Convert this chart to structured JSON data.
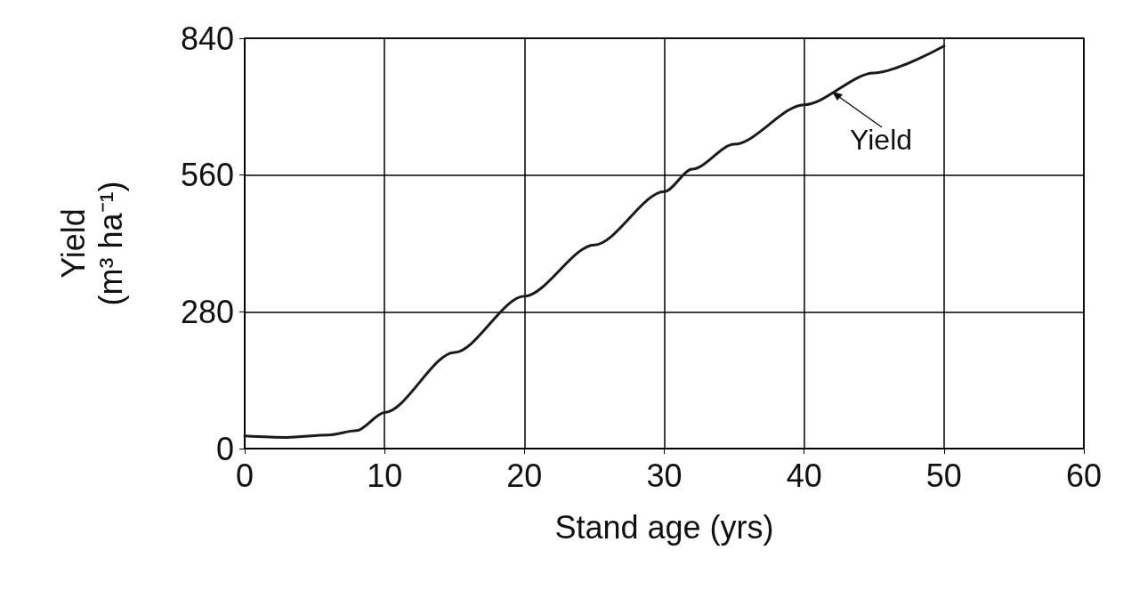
{
  "chart_data": {
    "type": "line",
    "xlabel": "Stand age (yrs)",
    "ylabel": "Yield\n(m³ ha⁻¹)",
    "series": [
      {
        "color": "#1a1a1a",
        "x": [
          0,
          3,
          6,
          8,
          10,
          15,
          20,
          25,
          30,
          32,
          35,
          40,
          45,
          50
        ],
        "values": [
          26,
          23,
          28,
          37,
          74,
          197,
          312,
          417,
          526,
          572,
          623,
          704,
          769,
          824
        ]
      }
    ],
    "xlim": [
      0,
      60
    ],
    "xticks": [
      0,
      10,
      20,
      30,
      40,
      50,
      60
    ],
    "ylim": [
      0,
      840
    ],
    "yticks": [
      0,
      280,
      560,
      840
    ],
    "grid": true,
    "marker": "none",
    "line_style": "solid",
    "annotations": [
      {
        "text": "Yield",
        "x": 42,
        "y": 730
      }
    ]
  }
}
